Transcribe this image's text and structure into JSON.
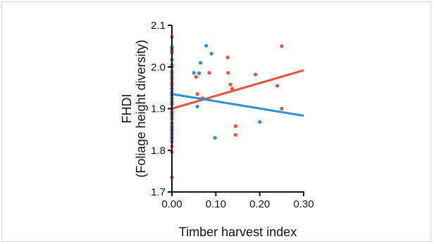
{
  "chart_data": {
    "type": "scatter",
    "title": "",
    "xlabel": "Timber harvest index",
    "ylabel_lines": [
      "FHDI",
      "(Foliage height diversity)"
    ],
    "xlim": [
      0.0,
      0.3
    ],
    "ylim": [
      1.7,
      2.1
    ],
    "x_ticks": [
      {
        "value": 0.0,
        "label": "0.00"
      },
      {
        "value": 0.1,
        "label": "0.10"
      },
      {
        "value": 0.2,
        "label": "0.20"
      },
      {
        "value": 0.3,
        "label": "0.30"
      }
    ],
    "y_ticks": [
      {
        "value": 1.7,
        "label": "1.7"
      },
      {
        "value": 1.8,
        "label": "1.8"
      },
      {
        "value": 1.9,
        "label": "1.9"
      },
      {
        "value": 2.0,
        "label": "2.0"
      },
      {
        "value": 2.1,
        "label": "2.1"
      }
    ],
    "legend": "none",
    "grid": false,
    "series": [
      {
        "color": "#e8513b",
        "points": [
          [
            0,
            2.072
          ],
          [
            0,
            2.045
          ],
          [
            0,
            2.039
          ],
          [
            0,
            2.018
          ],
          [
            0,
            2.005
          ],
          [
            0,
            1.99
          ],
          [
            0,
            1.985
          ],
          [
            0,
            1.978
          ],
          [
            0,
            1.97
          ],
          [
            0,
            1.963
          ],
          [
            0,
            1.955
          ],
          [
            0,
            1.947
          ],
          [
            0,
            1.94
          ],
          [
            0,
            1.932
          ],
          [
            0,
            1.925
          ],
          [
            0,
            1.917
          ],
          [
            0,
            1.91
          ],
          [
            0,
            1.9
          ],
          [
            0,
            1.892
          ],
          [
            0,
            1.883
          ],
          [
            0,
            1.875
          ],
          [
            0,
            1.866
          ],
          [
            0,
            1.857
          ],
          [
            0,
            1.848
          ],
          [
            0,
            1.838
          ],
          [
            0,
            1.829
          ],
          [
            0,
            1.82
          ],
          [
            0,
            1.809
          ],
          [
            0,
            1.796
          ],
          [
            0,
            1.735
          ],
          [
            0.055,
            1.976
          ],
          [
            0.058,
            1.935
          ],
          [
            0.07,
            1.925
          ],
          [
            0.085,
            1.986
          ],
          [
            0.127,
            2.023
          ],
          [
            0.128,
            1.986
          ],
          [
            0.133,
            1.958
          ],
          [
            0.137,
            1.948
          ],
          [
            0.145,
            1.858
          ],
          [
            0.145,
            1.837
          ],
          [
            0.19,
            1.982
          ],
          [
            0.24,
            1.955
          ],
          [
            0.25,
            2.05
          ],
          [
            0.25,
            1.9
          ]
        ],
        "trend": {
          "x": [
            0.0,
            0.3
          ],
          "y": [
            1.9,
            1.992
          ]
        }
      },
      {
        "color": "#2a8ed6",
        "points": [
          [
            0,
            2.048
          ],
          [
            0,
            2.034
          ],
          [
            0,
            2.017
          ],
          [
            0,
            2.0
          ],
          [
            0,
            1.986
          ],
          [
            0,
            1.972
          ],
          [
            0,
            1.96
          ],
          [
            0,
            1.948
          ],
          [
            0,
            1.936
          ],
          [
            0,
            1.924
          ],
          [
            0,
            1.912
          ],
          [
            0,
            1.9
          ],
          [
            0,
            1.888
          ],
          [
            0,
            1.876
          ],
          [
            0,
            1.864
          ],
          [
            0,
            1.852
          ],
          [
            0,
            1.842
          ],
          [
            0,
            1.832
          ],
          [
            0,
            1.822
          ],
          [
            0.05,
            1.986
          ],
          [
            0.058,
            1.905
          ],
          [
            0.062,
            1.985
          ],
          [
            0.065,
            2.01
          ],
          [
            0.078,
            2.051
          ],
          [
            0.09,
            2.032
          ],
          [
            0.098,
            1.83
          ],
          [
            0.2,
            1.868
          ]
        ],
        "trend": {
          "x": [
            0.0,
            0.3
          ],
          "y": [
            1.935,
            1.883
          ]
        }
      }
    ]
  }
}
